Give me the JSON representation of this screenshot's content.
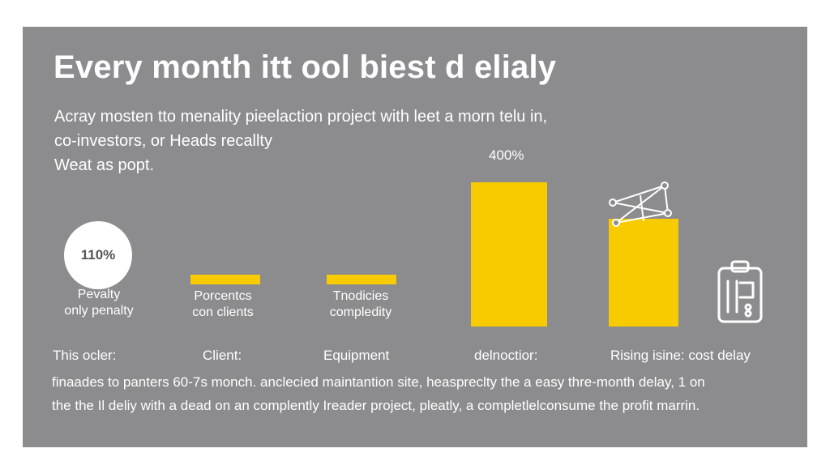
{
  "title": "Every month itt ool biest d elialy",
  "intro": [
    "Acray mosten tto menality pieelaction project with leet a morn telu in,",
    "co-investors, or Heads recallty",
    "Weat as popt."
  ],
  "circle": {
    "value": "110%",
    "caption": [
      "Pevalty",
      "only penalty"
    ]
  },
  "chart_data": {
    "type": "bar",
    "title": "Every month itt ool biest d elialy",
    "categories": [
      "Porcentcs con clients",
      "Tnodicies compledity",
      "delnoctior",
      "Rising isine: cost delay"
    ],
    "values": [
      15,
      20,
      400,
      300
    ],
    "value_labels": [
      "",
      "",
      "400%",
      ""
    ],
    "bar_labels": [
      [
        "Porcentcs",
        "con clients"
      ],
      [
        "Tnodicies",
        "compledity"
      ],
      [],
      []
    ],
    "ylim": [
      0,
      400
    ],
    "bar_color": "#f7cb00"
  },
  "categories_row": [
    "This ocler:",
    "Client:",
    "Equipment",
    "delnoctior:",
    "Rising isine: cost delay"
  ],
  "footer": [
    "finaades to panters 60-7s monch. anclecied maintantion site, heaspreclty the a easy thre-month delay, 1 on",
    "the the Il deliy with a dead on an complently Ireader project, pleatly, a completlelconsume the profit marrin."
  ],
  "colors": {
    "panel": "#8c8c8e",
    "accent": "#f7cb00",
    "text": "#ffffff"
  },
  "icons": [
    "network-icon",
    "clipboard-icon"
  ]
}
